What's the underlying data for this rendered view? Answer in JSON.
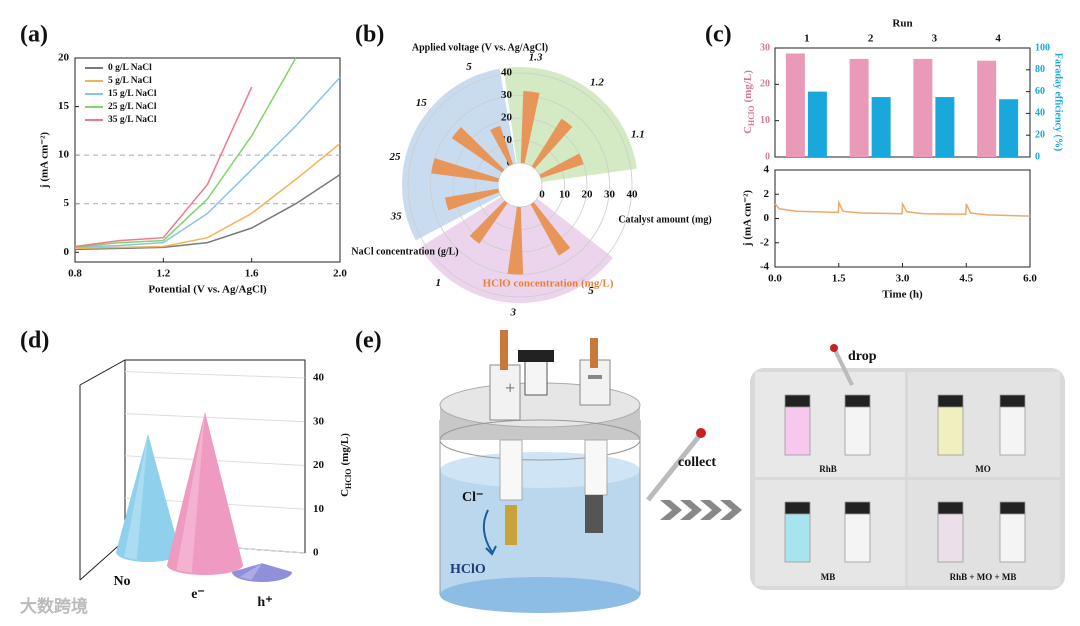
{
  "panel_labels": [
    "(a)",
    "(b)",
    "(c)",
    "(d)",
    "(e)"
  ],
  "chart_data": [
    {
      "type": "line",
      "xlabel": "Potential (V vs. Ag/AgCl)",
      "ylabel": "j (mA cm⁻²)",
      "x": [
        0.8,
        1.0,
        1.2,
        1.4,
        1.6,
        1.8,
        2.0
      ],
      "series": [
        {
          "name": "0 g/L  NaCl",
          "color": "#7a7a7a",
          "values": [
            0.3,
            0.4,
            0.5,
            1.0,
            2.5,
            5,
            8
          ]
        },
        {
          "name": "5 g/L  NaCl",
          "color": "#f5b25a",
          "values": [
            0.4,
            0.5,
            0.6,
            1.5,
            4,
            7.5,
            11.2
          ]
        },
        {
          "name": "15 g/L NaCl",
          "color": "#86c5e8",
          "values": [
            0.5,
            0.7,
            1.0,
            4,
            8.5,
            13,
            18
          ]
        },
        {
          "name": "25 g/L NaCl",
          "color": "#7fd56a",
          "values": [
            0.5,
            1.0,
            1.2,
            5.5,
            12,
            20,
            null
          ]
        },
        {
          "name": "35 g/L NaCl",
          "color": "#f0788c",
          "values": [
            0.6,
            1.2,
            1.5,
            7,
            17,
            null,
            null
          ]
        }
      ],
      "xlim": [
        0.8,
        2.0
      ],
      "ylim": [
        -1,
        20
      ],
      "xticks": [
        0.8,
        1.2,
        1.6,
        {
          "value": 2,
          "label": "2.0"
        }
      ],
      "yticks": [
        0,
        5,
        10,
        15,
        20
      ],
      "ref_lines": [
        5,
        10
      ],
      "legend": "upper left"
    },
    {
      "type": "polar",
      "radial_label": "HClO concentration (mg/L)",
      "rlim": [
        0,
        40
      ],
      "rticks": [
        0,
        10,
        20,
        30,
        40
      ],
      "bar_color": "#e8955a",
      "groups": [
        {
          "name": "Applied voltage (V vs. Ag/AgCl)",
          "color": "#d3eac5",
          "categories": [
            "1.1",
            "1.2",
            "1.3"
          ],
          "values": [
            20,
            25,
            32
          ]
        },
        {
          "name": "NaCl concentration (g/L)",
          "color": "#c9dcef",
          "categories": [
            "5",
            "15",
            "25",
            "35"
          ],
          "values": [
            18,
            27,
            30,
            24
          ]
        },
        {
          "name": "Catalyst amount (mg)",
          "color": "#ecd5ec",
          "categories": [
            "1",
            "3",
            "5"
          ],
          "values": [
            22,
            30,
            26
          ]
        }
      ]
    },
    {
      "type": "bar",
      "title": "Run",
      "categories": [
        "1",
        "2",
        "3",
        "4"
      ],
      "ylabel": [
        "C",
        "HClO",
        "(mg/L)"
      ],
      "y2label": "Faraday efficiency (%)",
      "ylim": [
        0,
        30
      ],
      "yticks": [
        0,
        10,
        20,
        30
      ],
      "y2lim": [
        0,
        100
      ],
      "y2ticks": [
        0,
        20,
        40,
        60,
        80,
        100
      ],
      "series": [
        {
          "color": "#e89ab8",
          "values": [
            28.5,
            27,
            27,
            26.5
          ]
        },
        {
          "color": "#1aa8dc",
          "values": [
            60,
            55,
            55,
            53
          ],
          "axis": "y2"
        }
      ]
    },
    {
      "type": "line",
      "xlabel": "Time (h)",
      "ylabel": "j (mA cm⁻²)",
      "x": [
        0,
        0.1,
        0.5,
        1.49,
        1.5,
        1.6,
        2,
        2.99,
        3.0,
        3.1,
        3.5,
        4.49,
        4.5,
        4.6,
        5,
        6
      ],
      "series": [
        {
          "color": "#f0a868",
          "values": [
            1.2,
            0.8,
            0.6,
            0.5,
            1.3,
            0.6,
            0.45,
            0.4,
            1.2,
            0.55,
            0.4,
            0.35,
            1.2,
            0.45,
            0.3,
            0.2
          ]
        }
      ],
      "xlim": [
        0,
        6
      ],
      "ylim": [
        -4,
        4
      ],
      "xticks": [
        {
          "value": 0,
          "label": "0.0"
        },
        1.5,
        {
          "value": 3,
          "label": "3.0"
        },
        4.5,
        {
          "value": 6,
          "label": "6.0"
        }
      ],
      "yticks": [
        -4,
        -2,
        0,
        2,
        4
      ]
    },
    {
      "type": "cone",
      "categories": [
        "No",
        "e⁻",
        "h⁺"
      ],
      "colors": [
        "#8fd0ec",
        "#ef9ac0",
        "#8f8fdc"
      ],
      "values": [
        27,
        35,
        2
      ],
      "ylim": [
        0,
        40
      ],
      "yticks": [
        0,
        10,
        20,
        30,
        40
      ],
      "ylabel": [
        "C",
        "HClO",
        "(mg/L)"
      ]
    }
  ],
  "diagram": {
    "ion": "Cl⁻",
    "product": "HClO",
    "collect": "collect",
    "drop": "drop",
    "samples": [
      "RhB",
      "MO",
      "MB",
      "RhB + MO + MB"
    ]
  },
  "watermark": "大数跨境"
}
